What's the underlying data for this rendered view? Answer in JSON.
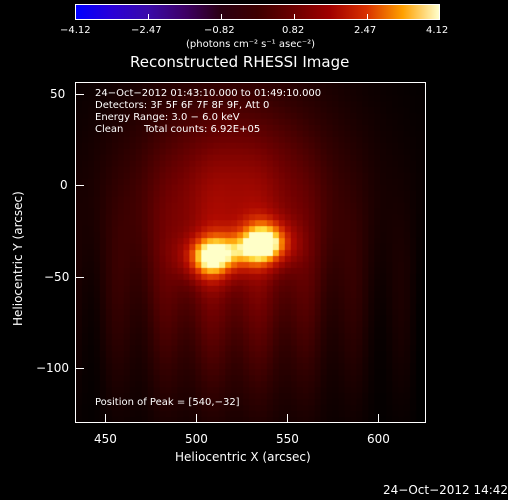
{
  "colorbar": {
    "ticks": [
      "−4.12",
      "−2.47",
      "−0.82",
      "0.82",
      "2.47",
      "4.12"
    ],
    "units": "(photons cm⁻² s⁻¹ asec⁻²)"
  },
  "title": "Reconstructed RHESSI Image",
  "info": {
    "line1": "24−Oct−2012 01:43:10.000 to 01:49:10.000",
    "line2": "Detectors: 3F 5F 6F 7F 8F 9F, Att 0",
    "line3": "Energy Range: 3.0 − 6.0 keV",
    "line4_label": "Clean",
    "line4_value": "Total counts: 6.92E+05",
    "peak": "Position of Peak = [540,−32]"
  },
  "axes": {
    "x_label": "Heliocentric X (arcsec)",
    "y_label": "Heliocentric Y (arcsec)",
    "x_ticks": [
      "450",
      "500",
      "550",
      "600"
    ],
    "y_ticks": [
      "50",
      "0",
      "−50",
      "−100"
    ]
  },
  "footer": {
    "timestamp": "24−Oct−2012 14:42"
  },
  "chart_data": {
    "type": "heatmap",
    "title": "Reconstructed RHESSI Image",
    "xlabel": "Heliocentric X (arcsec)",
    "ylabel": "Heliocentric Y (arcsec)",
    "xlim": [
      433,
      626
    ],
    "ylim": [
      -130,
      57
    ],
    "clim": [
      -4.12,
      4.12
    ],
    "colorbar_ticks": [
      -4.12,
      -2.47,
      -0.82,
      0.82,
      2.47,
      4.12
    ],
    "peak": [
      540,
      -32
    ],
    "sources": [
      {
        "x": 507,
        "y": -40,
        "intensity": 3.6
      },
      {
        "x": 538,
        "y": -31,
        "intensity": 4.12
      }
    ],
    "grid": false
  }
}
